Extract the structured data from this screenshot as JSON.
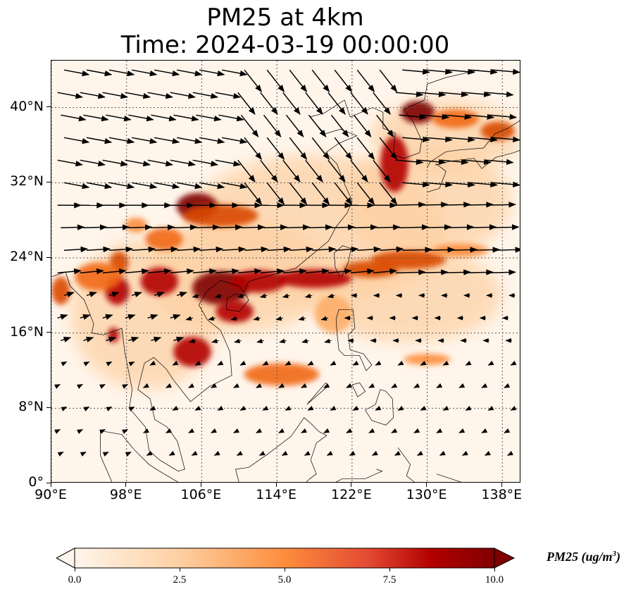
{
  "title": {
    "line1": "PM25 at 4km",
    "line2": "Time: 2024-03-19 00:00:00"
  },
  "map": {
    "lon_range": [
      90,
      140
    ],
    "lat_range": [
      0,
      45
    ],
    "lat_ticks": [
      {
        "value": 40,
        "label": "40°N"
      },
      {
        "value": 32,
        "label": "32°N"
      },
      {
        "value": 24,
        "label": "24°N"
      },
      {
        "value": 16,
        "label": "16°N"
      },
      {
        "value": 8,
        "label": "8°N"
      },
      {
        "value": 0,
        "label": "0°"
      }
    ],
    "lon_ticks": [
      {
        "value": 90,
        "label": "90°E"
      },
      {
        "value": 98,
        "label": "98°E"
      },
      {
        "value": 106,
        "label": "106°E"
      },
      {
        "value": 114,
        "label": "114°E"
      },
      {
        "value": 122,
        "label": "122°E"
      },
      {
        "value": 130,
        "label": "130°E"
      },
      {
        "value": 138,
        "label": "138°E"
      }
    ],
    "gridlines": true,
    "plumes": [
      {
        "lon": 105.5,
        "lat": 29.5,
        "rx": 2.2,
        "ry": 1.4,
        "value": 9.5
      },
      {
        "lon": 108,
        "lat": 28.5,
        "rx": 4,
        "ry": 1.2,
        "value": 8
      },
      {
        "lon": 108,
        "lat": 20.8,
        "rx": 3,
        "ry": 1.8,
        "value": 9.5
      },
      {
        "lon": 112,
        "lat": 21.5,
        "rx": 3,
        "ry": 1.2,
        "value": 9
      },
      {
        "lon": 101.5,
        "lat": 21.5,
        "rx": 2,
        "ry": 1.5,
        "value": 8.5
      },
      {
        "lon": 97,
        "lat": 20.5,
        "rx": 1.3,
        "ry": 1.5,
        "value": 8.5
      },
      {
        "lon": 97.2,
        "lat": 23.5,
        "rx": 1,
        "ry": 1.2,
        "value": 8
      },
      {
        "lon": 105,
        "lat": 14,
        "rx": 2,
        "ry": 1.6,
        "value": 9
      },
      {
        "lon": 96.6,
        "lat": 15.8,
        "rx": 0.6,
        "ry": 0.8,
        "value": 9
      },
      {
        "lon": 118,
        "lat": 21.8,
        "rx": 4,
        "ry": 1,
        "value": 8.5
      },
      {
        "lon": 124,
        "lat": 22.8,
        "rx": 3,
        "ry": 0.9,
        "value": 7.5
      },
      {
        "lon": 128,
        "lat": 23.8,
        "rx": 4,
        "ry": 1,
        "value": 7.5
      },
      {
        "lon": 133.5,
        "lat": 24.8,
        "rx": 3,
        "ry": 0.7,
        "value": 5.5
      },
      {
        "lon": 126.5,
        "lat": 34,
        "rx": 1.5,
        "ry": 3,
        "value": 8.5
      },
      {
        "lon": 129,
        "lat": 39.5,
        "rx": 1.8,
        "ry": 1.2,
        "value": 9.5
      },
      {
        "lon": 133,
        "lat": 38.8,
        "rx": 2.5,
        "ry": 1,
        "value": 6.5
      },
      {
        "lon": 137.5,
        "lat": 37.5,
        "rx": 1.8,
        "ry": 1,
        "value": 7.5
      },
      {
        "lon": 114.5,
        "lat": 11.6,
        "rx": 4,
        "ry": 1.2,
        "value": 6
      },
      {
        "lon": 109.5,
        "lat": 18.3,
        "rx": 2,
        "ry": 1.2,
        "value": 8.5
      },
      {
        "lon": 95,
        "lat": 22,
        "rx": 2.5,
        "ry": 1.5,
        "value": 6
      },
      {
        "lon": 91,
        "lat": 20.5,
        "rx": 1,
        "ry": 1.5,
        "value": 7.5
      },
      {
        "lon": 120,
        "lat": 18,
        "rx": 2,
        "ry": 2,
        "value": 4
      },
      {
        "lon": 130,
        "lat": 13.2,
        "rx": 2.5,
        "ry": 0.6,
        "value": 5.5
      },
      {
        "lon": 102,
        "lat": 26,
        "rx": 2,
        "ry": 1.2,
        "value": 6
      },
      {
        "lon": 99,
        "lat": 27.5,
        "rx": 1.2,
        "ry": 0.8,
        "value": 5
      }
    ],
    "background_colors": {
      "min": "#fff5eb",
      "low": "#fdd9b4",
      "mid": "#fd8d3c",
      "high": "#d94801",
      "max": "#7f0000"
    }
  },
  "colorbar": {
    "min": 0.0,
    "max": 10.0,
    "tick_labels": [
      "0.0",
      "2.5",
      "5.0",
      "7.5",
      "10.0"
    ],
    "tick_values": [
      0,
      2.5,
      5,
      7.5,
      10
    ],
    "label": "PM25 (ug/m",
    "label_sup": "3",
    "label_end": ")",
    "extend": "both",
    "cmap": "OrRd-like"
  }
}
